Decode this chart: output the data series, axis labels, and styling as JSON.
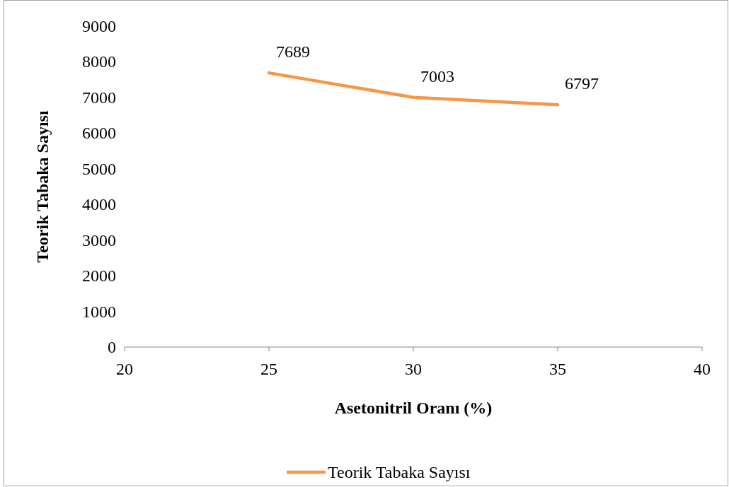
{
  "chart_data": {
    "type": "line",
    "xlabel": "Asetonitril Oranı (%)",
    "ylabel": "Teorik Tabaka Sayısı",
    "x": [
      25,
      30,
      35
    ],
    "series": [
      {
        "name": "Teorik Tabaka Sayısı",
        "color": "#f79646",
        "values": [
          7689,
          7003,
          6797
        ]
      }
    ],
    "xlim": [
      20,
      40
    ],
    "xticks": [
      20,
      25,
      30,
      35,
      40
    ],
    "ylim": [
      0,
      9000
    ],
    "yticks": [
      0,
      1000,
      2000,
      3000,
      4000,
      5000,
      6000,
      7000,
      8000,
      9000
    ],
    "grid": false,
    "legend": "bottom",
    "data_labels": true,
    "marker": "none",
    "line_style": "solid"
  }
}
